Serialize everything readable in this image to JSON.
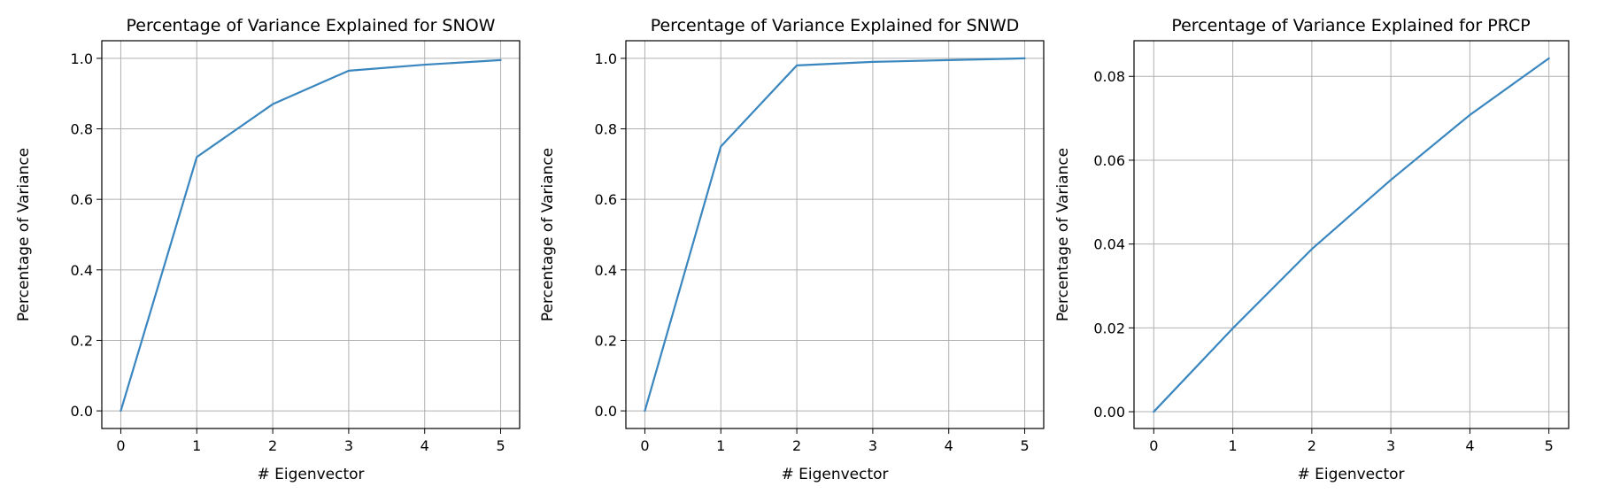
{
  "figure": {
    "line_color": "#3a86bf",
    "grid": true
  },
  "chart_data": [
    {
      "type": "line",
      "title": "Percentage of Variance Explained for SNOW",
      "xlabel": "# Eigenvector",
      "ylabel": "Percentage of Variance",
      "x": [
        0,
        1,
        2,
        3,
        4,
        5
      ],
      "series": [
        {
          "values": [
            0.0,
            0.72,
            0.87,
            0.965,
            0.982,
            0.995
          ]
        }
      ],
      "xlim": [
        -0.25,
        5.25
      ],
      "ylim": [
        -0.05,
        1.05
      ],
      "xticks": [
        0,
        1,
        2,
        3,
        4,
        5
      ],
      "xtick_labels": [
        "0",
        "1",
        "2",
        "3",
        "4",
        "5"
      ],
      "yticks": [
        0.0,
        0.2,
        0.4,
        0.6,
        0.8,
        1.0
      ],
      "ytick_labels": [
        "0.0",
        "0.2",
        "0.4",
        "0.6",
        "0.8",
        "1.0"
      ]
    },
    {
      "type": "line",
      "title": "Percentage of Variance Explained for SNWD",
      "xlabel": "# Eigenvector",
      "ylabel": "Percentage of Variance",
      "x": [
        0,
        1,
        2,
        3,
        4,
        5
      ],
      "series": [
        {
          "values": [
            0.0,
            0.75,
            0.98,
            0.99,
            0.995,
            1.0
          ]
        }
      ],
      "xlim": [
        -0.25,
        5.25
      ],
      "ylim": [
        -0.05,
        1.05
      ],
      "xticks": [
        0,
        1,
        2,
        3,
        4,
        5
      ],
      "xtick_labels": [
        "0",
        "1",
        "2",
        "3",
        "4",
        "5"
      ],
      "yticks": [
        0.0,
        0.2,
        0.4,
        0.6,
        0.8,
        1.0
      ],
      "ytick_labels": [
        "0.0",
        "0.2",
        "0.4",
        "0.6",
        "0.8",
        "1.0"
      ]
    },
    {
      "type": "line",
      "title": "Percentage of Variance Explained for PRCP",
      "xlabel": "# Eigenvector",
      "ylabel": "Percentage of Variance",
      "x": [
        0,
        1,
        2,
        3,
        4,
        5
      ],
      "series": [
        {
          "values": [
            0.0,
            0.0199,
            0.0388,
            0.0553,
            0.0708,
            0.0843
          ]
        }
      ],
      "xlim": [
        -0.25,
        5.25
      ],
      "ylim": [
        -0.004,
        0.0885
      ],
      "xticks": [
        0,
        1,
        2,
        3,
        4,
        5
      ],
      "xtick_labels": [
        "0",
        "1",
        "2",
        "3",
        "4",
        "5"
      ],
      "yticks": [
        0.0,
        0.02,
        0.04,
        0.06,
        0.08
      ],
      "ytick_labels": [
        "0.00",
        "0.02",
        "0.04",
        "0.06",
        "0.08"
      ]
    }
  ]
}
